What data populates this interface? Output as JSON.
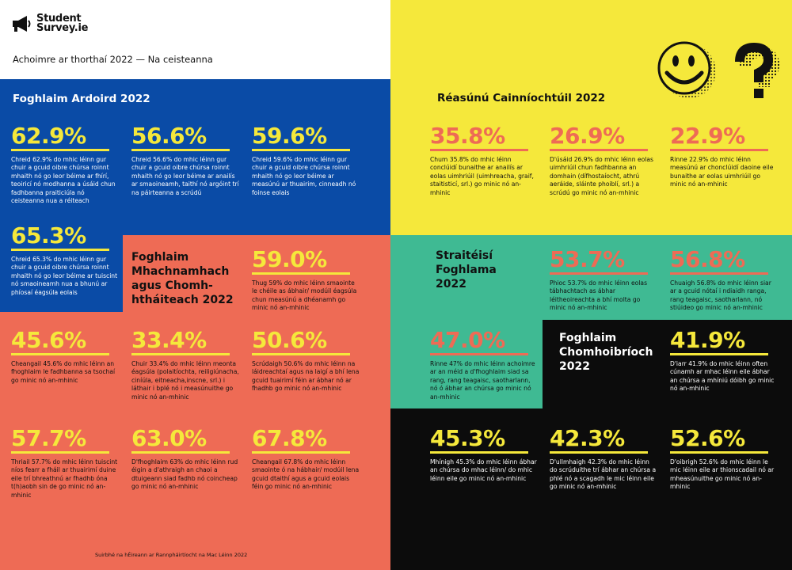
{
  "header": {
    "logo_line1": "Student",
    "logo_line2": "Survey.ie",
    "subtitle": "Achoimre ar thorthaí 2022 — Na ceisteanna"
  },
  "sections": {
    "foghlaim_ardoird": "Foghlaim Ardoird 2022",
    "reasunu": "Réasúnú Cainníochtúil 2022",
    "machnamhach_l1": "Foghlaim",
    "machnamhach_l2": "Mhachnamhach",
    "machnamhach_l3": "agus Chomh-",
    "machnamhach_l4": "htháiteach 2022",
    "straiteisi_l1": "Straitéisí",
    "straiteisi_l2": "Foghlama",
    "straiteisi_l3": "2022",
    "chomhoibriochl1": "Foghlaim",
    "chomhoibriochl2": "Chomhoibríoch",
    "chomhoibriochl3": "2022"
  },
  "stats": {
    "b1": {
      "value": "62.9%",
      "desc": "Chreid 62.9% do mhic léinn gur chuir a gcuid oibre chúrsa roinnt mhaith nó go leor béime ar fhírí, teoiricí nó modhanna a úsáid chun fadhbanna praiticiúla nó ceisteanna nua a réiteach"
    },
    "b2": {
      "value": "56.6%",
      "desc": "Chreid 56.6% do mhic léinn gur chuir a gcuid oibre chúrsa roinnt mhaith nó go leor béime ar anailís ar smaoineamh, taithí nó argóint trí na páirteanna a scrúdú"
    },
    "b3": {
      "value": "59.6%",
      "desc": "Chreid 59.6% do mhic léinn gur chuir a gcuid oibre chúrsa roinnt mhaith nó go leor béime ar measúnú ar thuairim, cinneadh nó foinse eolais"
    },
    "b4": {
      "value": "65.3%",
      "desc": "Chreid 65.3% do mhic léinn gur chuir a gcuid oibre chúrsa roinnt mhaith nó go leor béime ar tuiscint nó smaoineamh nua a bhunú ar phíosaí éagsúla eolais"
    },
    "y1": {
      "value": "35.8%",
      "desc": "Chum 35.8% do mhic léinn conclúidí bunaithe ar anailís ar eolas uimhriúil (uimhreacha, graif, staitisticí, srl.) go minic nó an-mhinic"
    },
    "y2": {
      "value": "26.9%",
      "desc": "D'úsáid 26.9% do mhic léinn eolas uimhriúil chun fadhbanna an domhain (dífhostaíocht, athrú aeráide, sláinte phoiblí, srl.) a scrúdú go minic nó an-mhinic"
    },
    "y3": {
      "value": "22.9%",
      "desc": "Rinne 22.9% do mhic léinn measúnú ar chonclúidí daoine eile bunaithe ar eolas uimhriúil go minic nó an-mhinic"
    },
    "c0": {
      "value": "59.0%",
      "desc": "Thug 59% do mhic léinn smaointe le chéile as ábhair/ modúil éagsúla chun measúnú a dhéanamh go minic nó an-mhinic"
    },
    "c1": {
      "value": "45.6%",
      "desc": "Cheangail 45.6% do mhic léinn an fhoghlaim le fadhbanna sa tsochaí go minic nó an-mhinic"
    },
    "c2": {
      "value": "33.4%",
      "desc": "Chuir 33.4% do mhic léinn meonta éagsúla (polaitíochta, reiligiúnacha, ciníúla, eitneacha,inscne, srl.) i láthair i bplé nó i measúnuithe go minic nó an-mhinic"
    },
    "c3": {
      "value": "50.6%",
      "desc": "Scrúdaigh 50.6% do mhic léinn na láidreachtaí agus na laigí a bhí lena gcuid tuairimí féin ar ábhar nó ar fhadhb go minic nó an-mhinic"
    },
    "c4": {
      "value": "57.7%",
      "desc": "Thriail 57.7% do mhic léinn tuiscint níos fearr a fháil ar thuairimí duine eile trí bhreathnú ar fhadhb óna t(h)aobh sin de go minic nó an-mhinic"
    },
    "c5": {
      "value": "63.0%",
      "desc": "D'fhoghlaim 63% do mhic léinn rud éigin a d'athraigh an chaoi a dtuigeann siad fadhb nó coincheap go minic nó an-mhinic"
    },
    "c6": {
      "value": "67.8%",
      "desc": "Cheangail 67.8% do mhic léinn smaointe ó na hábhair/ modúil lena gcuid dtaithí agus a gcuid eolais féin go minic nó an-mhinic"
    },
    "t1": {
      "value": "53.7%",
      "desc": "Phioc 53.7% do mhic léinn eolas tábhachtach as ábhar léitheoireachta a bhí molta go minic nó an-mhinic"
    },
    "t2": {
      "value": "56.8%",
      "desc": "Chuaigh 56.8% do mhic léinn siar ar a gcuid nótaí i ndiaidh ranga, rang teagaisc, saotharlann, nó stiúideo go minic nó an-mhinic"
    },
    "t3": {
      "value": "47.0%",
      "desc": "Rinne 47% do mhic léinn achoimre ar an méid a d'fhoghlaim siad sa rang, rang teagaisc, saotharlann, nó ó ábhar an chúrsa go minic nó an-mhinic"
    },
    "k0": {
      "value": "41.9%",
      "desc": "D'iarr 41.9% do mhic léinn often cúnamh ar mhac léinn eile ábhar an chúrsa a mhíniú dóibh go minic nó an-mhinic"
    },
    "k1": {
      "value": "45.3%",
      "desc": "Mhínigh 45.3% do mhic léinn ábhar an chúrsa do mhac léinn/ do mhic léinn eile go minic nó an-mhinic"
    },
    "k2": {
      "value": "42.3%",
      "desc": "D'ullmhaigh 42.3% do mhic léinn do scrúduithe trí ábhar an chúrsa a phlé nó a scagadh le mic léinn eile go minic nó an-mhinic"
    },
    "k3": {
      "value": "52.6%",
      "desc": "D'oibrigh 52.6% do mhic léinn le mic léinn eile ar thionscadail nó ar mheasúnuithe go minic nó an-mhinic"
    }
  },
  "footnote": "Suirbhé na hÉireann ar Rannpháirtíocht na Mac Léinn 2022",
  "icons": [
    "megaphone-icon",
    "smiley-face-icon",
    "question-mark-icon"
  ],
  "colors": {
    "blue": "#0a4ba6",
    "yellow": "#f5e83b",
    "coral": "#ee6b55",
    "teal": "#3fba93",
    "black": "#0c0c0c"
  }
}
